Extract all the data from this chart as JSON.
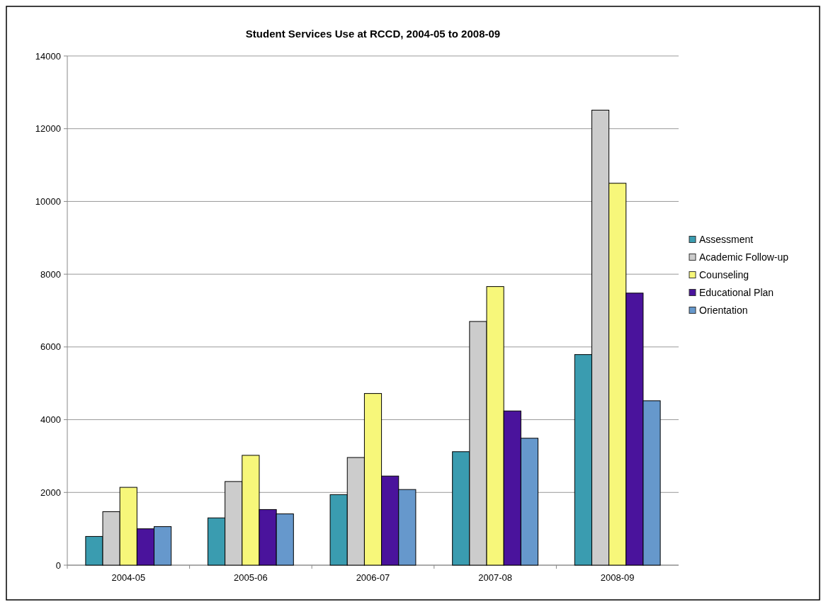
{
  "chart_data": {
    "type": "bar",
    "title": "Student Services Use at RCCD, 2004-05 to 2008-09",
    "categories": [
      "2004-05",
      "2005-06",
      "2006-07",
      "2007-08",
      "2008-09"
    ],
    "series": [
      {
        "name": "Assessment",
        "color": "#3a9cb0",
        "values": [
          790,
          1300,
          1940,
          3120,
          5790
        ]
      },
      {
        "name": "Academic Follow-up",
        "color": "#cccccc",
        "values": [
          1470,
          2300,
          2960,
          6700,
          12510
        ]
      },
      {
        "name": "Counseling",
        "color": "#f7f77a",
        "values": [
          2140,
          3020,
          4720,
          7660,
          10500
        ]
      },
      {
        "name": "Educational Plan",
        "color": "#4a139c",
        "values": [
          1000,
          1530,
          2450,
          4240,
          7480
        ]
      },
      {
        "name": "Orientation",
        "color": "#6698cc",
        "values": [
          1060,
          1410,
          2080,
          3490,
          4520
        ]
      }
    ],
    "ylim": [
      0,
      14000
    ],
    "yticks": [
      0,
      2000,
      4000,
      6000,
      8000,
      10000,
      12000,
      14000
    ],
    "grid": "y",
    "legend": "right"
  }
}
